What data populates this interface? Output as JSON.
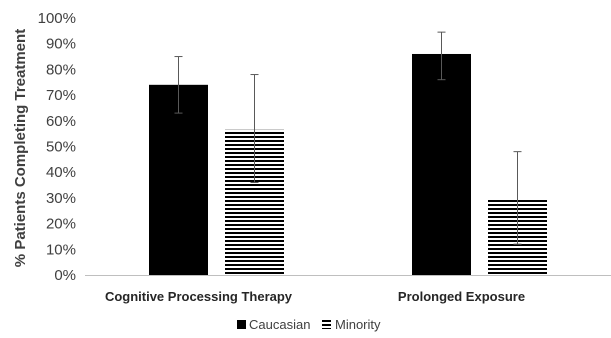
{
  "chart_data": {
    "type": "bar",
    "title": "",
    "xlabel": "",
    "ylabel": "% Patients Completing Treatment",
    "ylim": [
      0,
      100
    ],
    "yticks": [
      "0%",
      "10%",
      "20%",
      "30%",
      "40%",
      "50%",
      "60%",
      "70%",
      "80%",
      "90%",
      "100%"
    ],
    "categories": [
      "Cognitive Processing Therapy",
      "Prolonged Exposure"
    ],
    "series": [
      {
        "name": "Caucasian",
        "values": [
          74,
          86
        ],
        "error_low": [
          63,
          76
        ],
        "error_high": [
          85,
          94.5
        ],
        "fill": "solid",
        "color": "#000000"
      },
      {
        "name": "Minority",
        "values": [
          56.5,
          29.5
        ],
        "error_low": [
          36,
          12
        ],
        "error_high": [
          78,
          48
        ],
        "fill": "horizontal-stripes",
        "color": "#000000"
      }
    ],
    "grid": false,
    "legend": "bottom"
  }
}
